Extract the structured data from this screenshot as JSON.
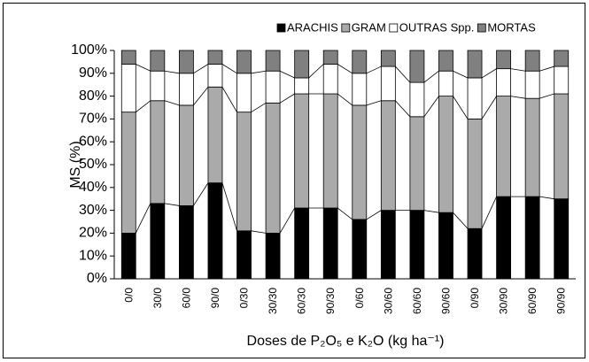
{
  "chart_data": {
    "type": "stacked_bar",
    "ylabel": "MS (%)",
    "xlabel": "Doses de P₂O₅ e K₂O (kg ha⁻¹)",
    "categories": [
      "0/0",
      "30/0",
      "60/0",
      "90/0",
      "0/30",
      "30/30",
      "60/30",
      "90/30",
      "0/60",
      "30/60",
      "60/60",
      "90/60",
      "0/90",
      "30/90",
      "60/90",
      "90/90"
    ],
    "series": [
      {
        "name": "ARACHIS",
        "color": "#000000",
        "values": [
          20,
          33,
          32,
          42,
          21,
          20,
          31,
          31,
          26,
          30,
          30,
          29,
          22,
          36,
          36,
          35
        ]
      },
      {
        "name": "GRAM",
        "color": "#aaaaaa",
        "values": [
          53,
          45,
          44,
          42,
          52,
          57,
          50,
          50,
          50,
          48,
          41,
          51,
          48,
          44,
          43,
          46
        ]
      },
      {
        "name": "OUTRAS Spp.",
        "color": "#ffffff",
        "values": [
          21,
          13,
          14,
          10,
          17,
          14,
          7,
          13,
          14,
          15,
          15,
          11,
          18,
          12,
          12,
          12
        ]
      },
      {
        "name": "MORTAS",
        "color": "#808080",
        "values": [
          6,
          9,
          10,
          6,
          10,
          9,
          12,
          6,
          10,
          7,
          14,
          9,
          12,
          8,
          9,
          7
        ]
      }
    ],
    "ylim": [
      0,
      100
    ],
    "yticks": [
      {
        "value": 0,
        "label": "0%"
      },
      {
        "value": 10,
        "label": "10%"
      },
      {
        "value": 20,
        "label": "20%"
      },
      {
        "value": 30,
        "label": "30%"
      },
      {
        "value": 40,
        "label": "40%"
      },
      {
        "value": 50,
        "label": "50%"
      },
      {
        "value": 60,
        "label": "60%"
      },
      {
        "value": 70,
        "label": "70%"
      },
      {
        "value": 80,
        "label": "80%"
      },
      {
        "value": 90,
        "label": "90%"
      },
      {
        "value": 100,
        "label": "100%"
      }
    ],
    "legend": "top"
  }
}
